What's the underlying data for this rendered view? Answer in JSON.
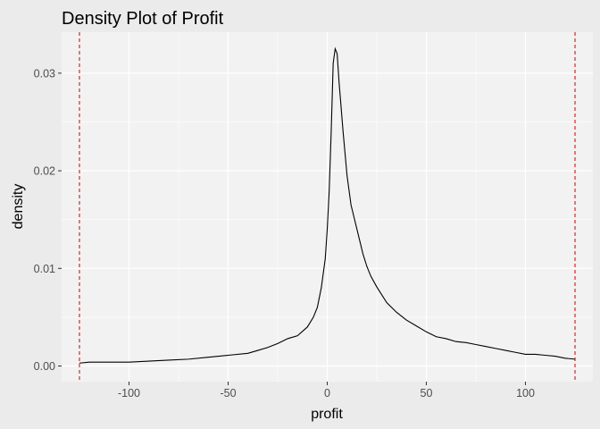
{
  "chart_data": {
    "type": "line",
    "title": "Density Plot of Profit",
    "xlabel": "profit",
    "ylabel": "density",
    "xlim": [
      -134,
      134
    ],
    "ylim": [
      -0.0016,
      0.0342
    ],
    "x_ticks": [
      -100,
      -50,
      0,
      50,
      100
    ],
    "x_tick_labels": [
      "-100",
      "-50",
      "0",
      "50",
      "100"
    ],
    "y_ticks": [
      0.0,
      0.01,
      0.02,
      0.03
    ],
    "y_tick_labels": [
      "0.00",
      "0.01",
      "0.02",
      "0.03"
    ],
    "grid": true,
    "background_color": "#ebebeb",
    "panel_color": "#f2f2f2",
    "grid_color": "#ffffff",
    "line_color": "#000000",
    "vline_color": "#cc0000",
    "vlines": [
      -125,
      125
    ],
    "series": [
      {
        "x": [
          -125,
          -120,
          -110,
          -100,
          -90,
          -80,
          -70,
          -60,
          -50,
          -40,
          -35,
          -30,
          -25,
          -20,
          -15,
          -10,
          -7,
          -5,
          -3,
          -1,
          0,
          1,
          2,
          3,
          4,
          5,
          6,
          8,
          10,
          12,
          15,
          18,
          20,
          22,
          25,
          30,
          35,
          40,
          45,
          50,
          55,
          60,
          65,
          70,
          75,
          80,
          85,
          90,
          95,
          100,
          105,
          110,
          115,
          120,
          125
        ],
        "y": [
          0.0003,
          0.0004,
          0.0004,
          0.0004,
          0.0005,
          0.0006,
          0.0007,
          0.0009,
          0.0011,
          0.0013,
          0.0016,
          0.0019,
          0.0023,
          0.0028,
          0.0031,
          0.004,
          0.005,
          0.006,
          0.008,
          0.011,
          0.014,
          0.018,
          0.024,
          0.031,
          0.0325,
          0.032,
          0.029,
          0.024,
          0.0195,
          0.0165,
          0.014,
          0.0115,
          0.0102,
          0.0092,
          0.0081,
          0.0065,
          0.0055,
          0.0047,
          0.0041,
          0.0035,
          0.003,
          0.0028,
          0.0025,
          0.0024,
          0.0022,
          0.002,
          0.0018,
          0.0016,
          0.0014,
          0.0012,
          0.0012,
          0.0011,
          0.001,
          0.0008,
          0.0007
        ]
      }
    ]
  }
}
